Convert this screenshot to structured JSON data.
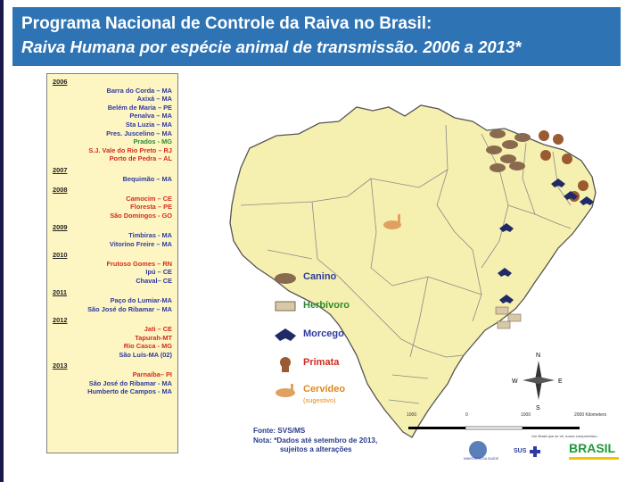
{
  "title": "Programa Nacional de Controle da Raiva no Brasil:",
  "subtitle": "Raiva Humana por espécie animal de transmissão. 2006 a 2013*",
  "panel": {
    "groups": [
      {
        "year": "2006",
        "cities": [
          {
            "name": "Barra do Corda – MA",
            "color": "#2f3aa0"
          },
          {
            "name": "Axixá – MA",
            "color": "#2f3aa0"
          },
          {
            "name": "Belém de Maria – PE",
            "color": "#2f3aa0"
          },
          {
            "name": "Penalva – MA",
            "color": "#2f3aa0"
          },
          {
            "name": "Sta Luzia – MA",
            "color": "#2f3aa0"
          },
          {
            "name": "Pres. Juscelino – MA",
            "color": "#2f3aa0"
          },
          {
            "name": "Prados - MG",
            "color": "#2e8b2e"
          },
          {
            "name": "S.J. Vale do Rio Preto – RJ",
            "color": "#d22d1e"
          },
          {
            "name": "Porto de Pedra – AL",
            "color": "#d22d1e"
          }
        ]
      },
      {
        "year": "2007",
        "cities": [
          {
            "name": "Bequimão – MA",
            "color": "#2f3aa0"
          }
        ]
      },
      {
        "year": "2008",
        "cities": [
          {
            "name": "Camocim – CE",
            "color": "#d22d1e"
          },
          {
            "name": "Floresta – PE",
            "color": "#d22d1e"
          },
          {
            "name": "São Domingos - GO",
            "color": "#d22d1e"
          }
        ]
      },
      {
        "year": "2009",
        "cities": [
          {
            "name": "Timbiras - MA",
            "color": "#2f3aa0"
          },
          {
            "name": "Vitorino Freire – MA",
            "color": "#2f3aa0"
          }
        ]
      },
      {
        "year": "2010",
        "cities": [
          {
            "name": "Frutoso Gomes – RN",
            "color": "#d22d1e"
          },
          {
            "name": "Ipú – CE",
            "color": "#2f3aa0"
          },
          {
            "name": "Chaval– CE",
            "color": "#2f3aa0"
          }
        ]
      },
      {
        "year": "2011",
        "cities": [
          {
            "name": "Paço do Lumiar-MA",
            "color": "#2f3aa0"
          },
          {
            "name": "São José do Ribamar – MA",
            "color": "#2f3aa0"
          }
        ]
      },
      {
        "year": "2012",
        "cities": [
          {
            "name": "Jati – CE",
            "color": "#d22d1e"
          },
          {
            "name": "Tapurah-MT",
            "color": "#d22d1e"
          },
          {
            "name": "Rio Casca - MG",
            "color": "#d22d1e"
          },
          {
            "name": "São Luís-MA (02)",
            "color": "#2f3aa0"
          }
        ]
      },
      {
        "year": "2013",
        "cities": [
          {
            "name": "Parnaíba– PI",
            "color": "#d22d1e"
          },
          {
            "name": "São José do Ribamar - MA",
            "color": "#2f3aa0"
          },
          {
            "name": "Humberto de Campos - MA",
            "color": "#2f3aa0"
          }
        ]
      }
    ]
  },
  "legend": [
    {
      "label": "Canino",
      "color": "#2f3aa0",
      "icon": "dog-icon"
    },
    {
      "label": "Herbívoro",
      "color": "#2e8b2e",
      "icon": "cow-icon"
    },
    {
      "label": "Morcego",
      "color": "#2f3aa0",
      "icon": "bat-icon"
    },
    {
      "label": "Primata",
      "color": "#d22d1e",
      "icon": "monkey-icon"
    },
    {
      "label": "Cervídeo",
      "color": "#e08a1e",
      "icon": "deer-icon"
    }
  ],
  "legend_note": "(sugestivo)",
  "source": {
    "line1": "Fonte: SVS/MS",
    "line2": "Nota: *Dados até setembro de 2013,",
    "line3": "sujeitos a alterações"
  },
  "compass": {
    "n": "N",
    "s": "S",
    "e": "E",
    "w": "W"
  },
  "scale_labels": [
    "1000",
    "0",
    "1000",
    "2000 Kilometers"
  ],
  "logos": {
    "ms": "MINISTÉRIO DA SAÚDE",
    "sus": "SUS",
    "brasil": "BRASIL",
    "slogan": "Um Brasil que se vê, nosso compromisso."
  }
}
